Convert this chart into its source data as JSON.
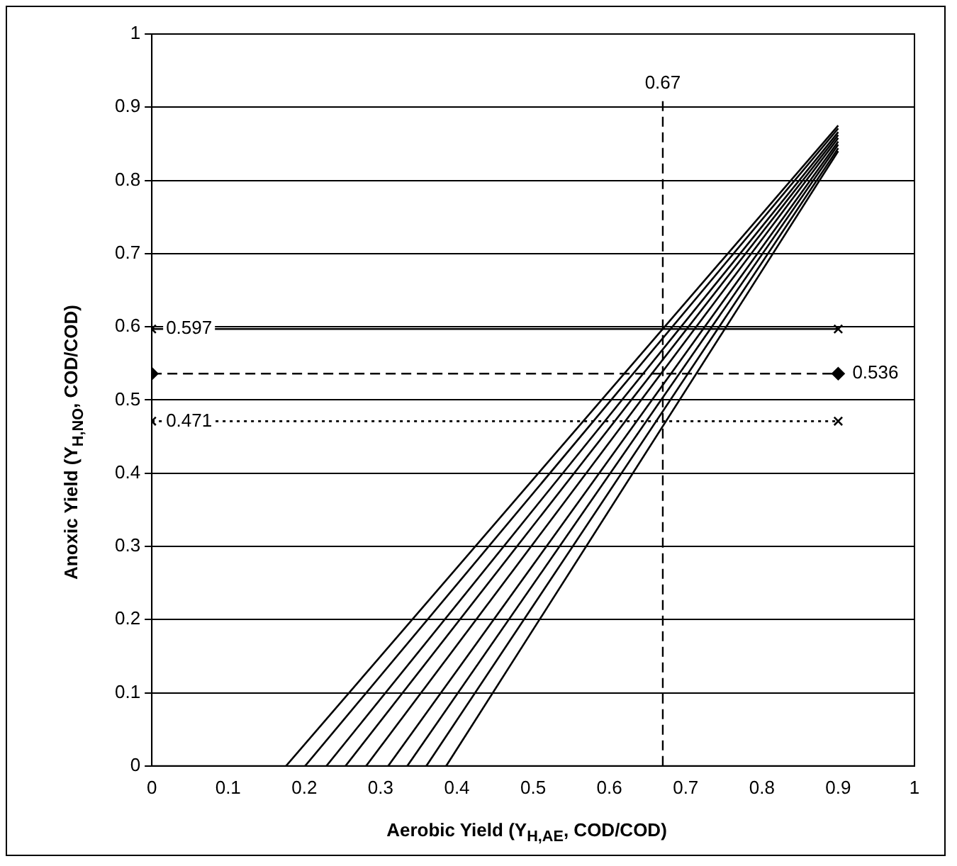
{
  "chart_data": {
    "type": "line",
    "xlabel": "Aerobic Yield (Y$_{H,AE}$, COD/COD)",
    "ylabel": "Anoxic Yield (Y$_{H,NO}$, COD/COD)",
    "xlim": [
      0,
      1
    ],
    "ylim": [
      0,
      1
    ],
    "xticks": [
      0,
      0.1,
      0.2,
      0.3,
      0.4,
      0.5,
      0.6,
      0.7,
      0.8,
      0.9,
      1
    ],
    "yticks": [
      0,
      0.1,
      0.2,
      0.3,
      0.4,
      0.5,
      0.6,
      0.7,
      0.8,
      0.9,
      1
    ],
    "grid": "y",
    "legend": false,
    "marker": "none",
    "line_style": "solid",
    "series": [
      {
        "color": "#000000",
        "x": [
          0.176,
          0.9
        ],
        "values": [
          0,
          0.875
        ]
      },
      {
        "color": "#000000",
        "x": [
          0.201,
          0.9
        ],
        "values": [
          0,
          0.871
        ]
      },
      {
        "color": "#000000",
        "x": [
          0.229,
          0.9
        ],
        "values": [
          0,
          0.866
        ]
      },
      {
        "color": "#000000",
        "x": [
          0.254,
          0.9
        ],
        "values": [
          0,
          0.862
        ]
      },
      {
        "color": "#000000",
        "x": [
          0.281,
          0.9
        ],
        "values": [
          0,
          0.858
        ]
      },
      {
        "color": "#000000",
        "x": [
          0.31,
          0.9
        ],
        "values": [
          0,
          0.853
        ]
      },
      {
        "color": "#000000",
        "x": [
          0.335,
          0.9
        ],
        "values": [
          0,
          0.849
        ]
      },
      {
        "color": "#000000",
        "x": [
          0.36,
          0.9
        ],
        "values": [
          0,
          0.844
        ]
      },
      {
        "color": "#000000",
        "x": [
          0.386,
          0.9
        ],
        "values": [
          0,
          0.84
        ]
      },
      {
        "color": "#000000",
        "x": [
          0,
          0.9
        ],
        "values": [
          0.597,
          0.597
        ],
        "value_labels": [
          "0.597",
          null
        ],
        "marker": "cross",
        "line_style": "solid"
      },
      {
        "color": "#000000",
        "x": [
          0,
          0.9
        ],
        "values": [
          0.536,
          0.536
        ],
        "value_labels": [
          null,
          "0.536"
        ],
        "marker": "diamond",
        "line_style": "dashed"
      },
      {
        "color": "#000000",
        "x": [
          0,
          0.9
        ],
        "values": [
          0.471,
          0.471
        ],
        "value_labels": [
          "0.471",
          null
        ],
        "marker": "cross",
        "line_style": "dotted"
      }
    ],
    "ref_lines": [
      {
        "axis": "x",
        "value": 0.67,
        "label": "0.67",
        "line_style": "dashed",
        "color": "#000000"
      }
    ]
  }
}
